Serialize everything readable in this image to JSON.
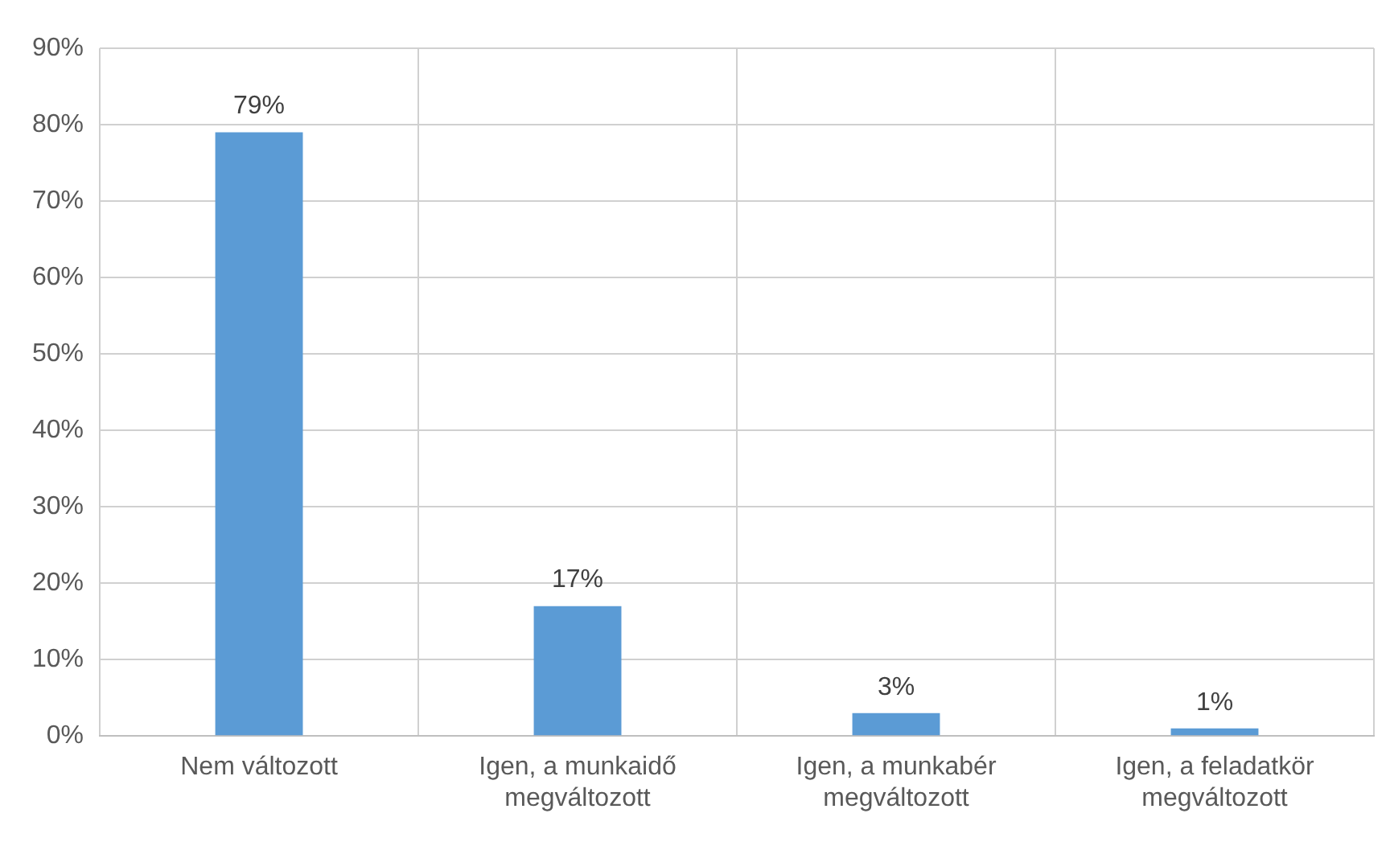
{
  "chart_data": {
    "type": "bar",
    "categories": [
      "Nem változott",
      "Igen, a munkaidő megváltozott",
      "Igen, a munkabér megváltozott",
      "Igen, a feladatkör megváltozott"
    ],
    "values": [
      79,
      17,
      3,
      1
    ],
    "color": "#5b9bd5",
    "value_labels": [
      "79%",
      "17%",
      "3%",
      "1%"
    ],
    "ylim": [
      0,
      90
    ],
    "yticks": [
      {
        "value": 0,
        "label": "0%"
      },
      {
        "value": 10,
        "label": "10%"
      },
      {
        "value": 20,
        "label": "20%"
      },
      {
        "value": 30,
        "label": "30%"
      },
      {
        "value": 40,
        "label": "40%"
      },
      {
        "value": 50,
        "label": "50%"
      },
      {
        "value": 60,
        "label": "60%"
      },
      {
        "value": 70,
        "label": "70%"
      },
      {
        "value": 80,
        "label": "80%"
      },
      {
        "value": 90,
        "label": "90%"
      }
    ],
    "grid": true
  }
}
